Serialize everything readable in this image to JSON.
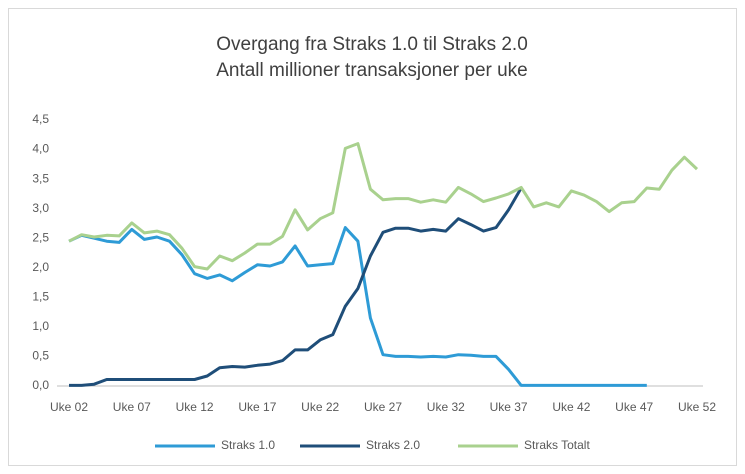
{
  "chart_data": {
    "type": "line",
    "title": "Overgang fra Straks 1.0 til Straks 2.0",
    "subtitle": "Antall millioner transaksjoner per uke",
    "categories": [
      "Uke 02",
      null,
      null,
      null,
      null,
      "Uke 07",
      null,
      null,
      null,
      null,
      "Uke 12",
      null,
      null,
      null,
      null,
      "Uke 17",
      null,
      null,
      null,
      null,
      "Uke 22",
      null,
      null,
      null,
      null,
      "Uke 27",
      null,
      null,
      null,
      null,
      "Uke 32",
      null,
      null,
      null,
      null,
      "Uke 37",
      null,
      null,
      null,
      null,
      "Uke 42",
      null,
      null,
      null,
      null,
      "Uke 47",
      null,
      null,
      null,
      null,
      "Uke 52"
    ],
    "series": [
      {
        "name": "Straks 1.0",
        "color": "#2e9bd6",
        "values": [
          2.45,
          2.55,
          2.5,
          2.45,
          2.43,
          2.65,
          2.48,
          2.52,
          2.45,
          2.22,
          1.9,
          1.82,
          1.88,
          1.78,
          1.92,
          2.05,
          2.03,
          2.1,
          2.37,
          2.03,
          2.05,
          2.07,
          2.68,
          2.45,
          1.15,
          0.53,
          0.5,
          0.5,
          0.49,
          0.5,
          0.49,
          0.53,
          0.52,
          0.5,
          0.5,
          0.28,
          0.01,
          0.01,
          0.01,
          0.01,
          0.01,
          0.01,
          0.01,
          0.01,
          0.01,
          0.01,
          0.01,
          null,
          null,
          null,
          null
        ]
      },
      {
        "name": "Straks 2.0",
        "color": "#1f4e79",
        "values": [
          0.01,
          0.01,
          0.03,
          0.11,
          0.11,
          0.11,
          0.11,
          0.11,
          0.11,
          0.11,
          0.11,
          0.17,
          0.31,
          0.33,
          0.32,
          0.35,
          0.37,
          0.43,
          0.61,
          0.61,
          0.78,
          0.87,
          1.35,
          1.65,
          2.2,
          2.6,
          2.67,
          2.67,
          2.62,
          2.65,
          2.62,
          2.83,
          2.73,
          2.62,
          2.68,
          2.98,
          3.35,
          null,
          null,
          null,
          null,
          null,
          null,
          null,
          null,
          null,
          null,
          null,
          null,
          null,
          null
        ]
      },
      {
        "name": "Straks Totalt",
        "color": "#a9d18e",
        "values": [
          2.45,
          2.56,
          2.52,
          2.55,
          2.54,
          2.76,
          2.59,
          2.62,
          2.56,
          2.33,
          2.02,
          1.98,
          2.2,
          2.12,
          2.25,
          2.4,
          2.4,
          2.53,
          2.98,
          2.64,
          2.83,
          2.93,
          4.02,
          4.1,
          3.33,
          3.15,
          3.17,
          3.17,
          3.11,
          3.15,
          3.11,
          3.36,
          3.25,
          3.12,
          3.18,
          3.25,
          3.36,
          3.03,
          3.1,
          3.03,
          3.3,
          3.23,
          3.12,
          2.95,
          3.1,
          3.12,
          3.35,
          3.33,
          3.65,
          3.87,
          3.67
        ]
      }
    ],
    "ylim": [
      0,
      4.5
    ],
    "yticks": [
      {
        "value": 0,
        "label": "0,0"
      },
      {
        "value": 0.5,
        "label": "0,5"
      },
      {
        "value": 1,
        "label": "1,0"
      },
      {
        "value": 1.5,
        "label": "1,5"
      },
      {
        "value": 2,
        "label": "2,0"
      },
      {
        "value": 2.5,
        "label": "2,5"
      },
      {
        "value": 3,
        "label": "3,0"
      },
      {
        "value": 3.5,
        "label": "3,5"
      },
      {
        "value": 4,
        "label": "4,0"
      },
      {
        "value": 4.5,
        "label": "4,5"
      }
    ],
    "grid": false,
    "legend": "bottom"
  }
}
